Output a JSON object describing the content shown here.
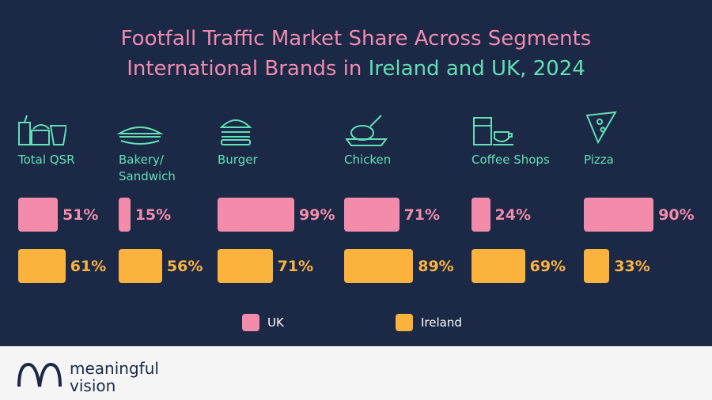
{
  "chart_data": {
    "type": "bar",
    "title": "Footfall Traffic Market Share Across Segments",
    "subtitle": [
      "International Brands in",
      "Ireland and UK, 2024"
    ],
    "categories": [
      "Total QSR",
      "Bakery/\nSandwich",
      "Burger",
      "Chicken",
      "Coffee Shops",
      "Pizza"
    ],
    "series": [
      {
        "name": "UK",
        "color": "#f38bab",
        "values": [
          51,
          15,
          99,
          71,
          24,
          90
        ],
        "value_labels": [
          "51%",
          "15%",
          "99%",
          "71%",
          "24%",
          "90%"
        ]
      },
      {
        "name": "Ireland",
        "color": "#fbb33e",
        "values": [
          61,
          56,
          71,
          89,
          69,
          33
        ],
        "value_labels": [
          "61%",
          "56%",
          "71%",
          "89%",
          "69%",
          "33%"
        ]
      }
    ]
  },
  "footer": {
    "logo": [
      "meaningful",
      "vision"
    ]
  }
}
